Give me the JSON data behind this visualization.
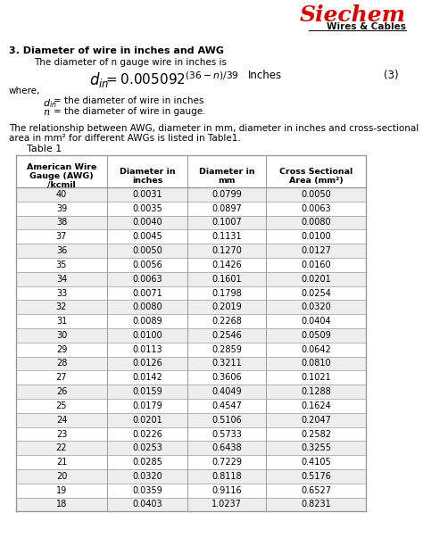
{
  "siechem_text": "Siechem",
  "wires_cables_text": "Wires & Cables",
  "section3_title": "3. Diameter of wire in inches and AWG",
  "section3_intro": "The diameter of n gauge wire in inches is",
  "formula_number": "(3)",
  "where_text": "where,",
  "def1_right": "= the diameter of wire in inches",
  "def2_right": "= the diameter of wire in gauge.",
  "para_line1": "The relationship between AWG, diameter in mm, diameter in inches and cross-sectional",
  "para_line2": "area in mm² for different AWGs is listed in Table1.",
  "table_title": "Table 1",
  "col_headers": [
    "American Wire\nGauge (AWG)\n/kcmil",
    "Diameter in\ninches",
    "Diameter in\nmm",
    "Cross Sectional\nArea (mm²)"
  ],
  "table_data": [
    [
      "40",
      "0.0031",
      "0.0799",
      "0.0050"
    ],
    [
      "39",
      "0.0035",
      "0.0897",
      "0.0063"
    ],
    [
      "38",
      "0.0040",
      "0.1007",
      "0.0080"
    ],
    [
      "37",
      "0.0045",
      "0.1131",
      "0.0100"
    ],
    [
      "36",
      "0.0050",
      "0.1270",
      "0.0127"
    ],
    [
      "35",
      "0.0056",
      "0.1426",
      "0.0160"
    ],
    [
      "34",
      "0.0063",
      "0.1601",
      "0.0201"
    ],
    [
      "33",
      "0.0071",
      "0.1798",
      "0.0254"
    ],
    [
      "32",
      "0.0080",
      "0.2019",
      "0.0320"
    ],
    [
      "31",
      "0.0089",
      "0.2268",
      "0.0404"
    ],
    [
      "30",
      "0.0100",
      "0.2546",
      "0.0509"
    ],
    [
      "29",
      "0.0113",
      "0.2859",
      "0.0642"
    ],
    [
      "28",
      "0.0126",
      "0.3211",
      "0.0810"
    ],
    [
      "27",
      "0.0142",
      "0.3606",
      "0.1021"
    ],
    [
      "26",
      "0.0159",
      "0.4049",
      "0.1288"
    ],
    [
      "25",
      "0.0179",
      "0.4547",
      "0.1624"
    ],
    [
      "24",
      "0.0201",
      "0.5106",
      "0.2047"
    ],
    [
      "23",
      "0.0226",
      "0.5733",
      "0.2582"
    ],
    [
      "22",
      "0.0253",
      "0.6438",
      "0.3255"
    ],
    [
      "21",
      "0.0285",
      "0.7229",
      "0.4105"
    ],
    [
      "20",
      "0.0320",
      "0.8118",
      "0.5176"
    ],
    [
      "19",
      "0.0359",
      "0.9116",
      "0.6527"
    ],
    [
      "18",
      "0.0403",
      "1.0237",
      "0.8231"
    ]
  ],
  "bg_color": "#ffffff",
  "table_border_color": "#999999",
  "row_bg_odd": "#eeeeee",
  "row_bg_even": "#ffffff",
  "siechem_color": "#dd0000",
  "text_color": "#000000",
  "wires_color": "#111111"
}
